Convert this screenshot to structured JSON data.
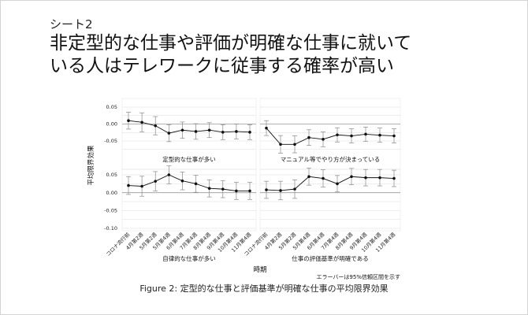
{
  "header": {
    "sheet_label": "シート2",
    "headline_line1": "非定型的な仕事や評価が明確な仕事に就いて",
    "headline_line2": "いる人はテレワークに従事する確率が高い"
  },
  "chart_data": {
    "type": "line",
    "ylabel": "平均限界効果",
    "xlabel": "時期",
    "note": "エラーバーは95%信頼区間を示す",
    "caption": "Figure 2: 定型的な仕事と評価基準が明確な仕事の平均限界効果",
    "x_categories": [
      "コロナ流行前",
      "4月第2週",
      "5月第2週",
      "5月第4週",
      "6月第4週",
      "7月第4週",
      "8月第4週",
      "9月第4週",
      "10月第4週",
      "11月第4週"
    ],
    "panels": [
      {
        "title": "定型的な仕事が多い",
        "ylim": [
          -0.075,
          0.055
        ],
        "yticks": [
          0.05,
          0.0,
          -0.05
        ],
        "values": [
          0.01,
          0.005,
          -0.005,
          -0.027,
          -0.018,
          -0.022,
          -0.018,
          -0.024,
          -0.022,
          -0.024
        ],
        "ci": [
          0.025,
          0.028,
          0.027,
          0.025,
          0.024,
          0.023,
          0.022,
          0.022,
          0.022,
          0.022
        ]
      },
      {
        "title": "マニュアル等でやり方が決まっている",
        "ylim": [
          -0.075,
          0.055
        ],
        "yticks": [
          0.05,
          0.0,
          -0.05
        ],
        "values": [
          -0.012,
          -0.06,
          -0.06,
          -0.04,
          -0.045,
          -0.032,
          -0.035,
          -0.03,
          -0.033,
          -0.035
        ],
        "ci": [
          0.022,
          0.026,
          0.025,
          0.023,
          0.022,
          0.021,
          0.021,
          0.021,
          0.021,
          0.021
        ]
      },
      {
        "title": "自律的な仕事が多い",
        "ylim": [
          -0.1,
          0.08
        ],
        "yticks": [
          0.05,
          0.0,
          -0.05,
          -0.1
        ],
        "values": [
          0.02,
          0.018,
          0.032,
          0.05,
          0.033,
          0.025,
          0.012,
          0.01,
          0.005,
          0.005
        ],
        "ci": [
          0.025,
          0.028,
          0.027,
          0.025,
          0.025,
          0.024,
          0.024,
          0.024,
          0.024,
          0.024
        ]
      },
      {
        "title": "仕事の評価基準が明確である",
        "ylim": [
          -0.1,
          0.08
        ],
        "yticks": [
          0.05,
          0.0,
          -0.05,
          -0.1
        ],
        "values": [
          0.008,
          0.006,
          0.01,
          0.045,
          0.04,
          0.025,
          0.045,
          0.042,
          0.042,
          0.04
        ],
        "ci": [
          0.024,
          0.026,
          0.026,
          0.024,
          0.024,
          0.023,
          0.023,
          0.023,
          0.023,
          0.023
        ]
      }
    ]
  },
  "colors": {
    "line": "#111111",
    "ci": "#888888",
    "grid": "#dddddd",
    "zero": "#999999"
  }
}
